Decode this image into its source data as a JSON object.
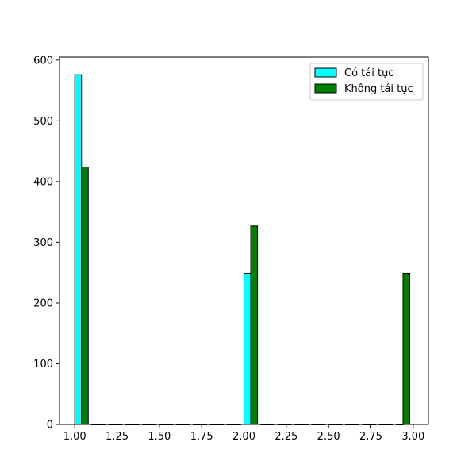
{
  "chart_data": {
    "type": "bar",
    "title": "",
    "xlabel": "",
    "ylabel": "",
    "xlim": [
      0.91,
      3.09
    ],
    "ylim": [
      0,
      605
    ],
    "grid": false,
    "legend_position": "top-right",
    "bin_edges": [
      1.0,
      1.1,
      1.2,
      1.3,
      1.4,
      1.5,
      1.6,
      1.7,
      1.8,
      1.9,
      2.0,
      2.1,
      2.2,
      2.3,
      2.4,
      2.5,
      2.6,
      2.7,
      2.8,
      2.9,
      3.0
    ],
    "x_ticks": [
      1.0,
      1.25,
      1.5,
      1.75,
      2.0,
      2.25,
      2.5,
      2.75,
      3.0
    ],
    "x_tick_labels": [
      "1.00",
      "1.25",
      "1.50",
      "1.75",
      "2.00",
      "2.25",
      "2.50",
      "2.75",
      "3.00"
    ],
    "y_ticks": [
      0,
      100,
      200,
      300,
      400,
      500,
      600
    ],
    "y_tick_labels": [
      "0",
      "100",
      "200",
      "300",
      "400",
      "500",
      "600"
    ],
    "series": [
      {
        "name": "Có tái tục",
        "color": "#00ffff",
        "values": [
          576,
          0,
          0,
          0,
          0,
          0,
          0,
          0,
          0,
          0,
          249,
          0,
          0,
          0,
          0,
          0,
          0,
          0,
          0,
          0
        ]
      },
      {
        "name": "Không tái tục",
        "color": "#008000",
        "values": [
          424,
          0,
          0,
          0,
          0,
          0,
          0,
          0,
          0,
          0,
          327,
          0,
          0,
          0,
          0,
          0,
          0,
          0,
          0,
          249
        ]
      }
    ]
  }
}
